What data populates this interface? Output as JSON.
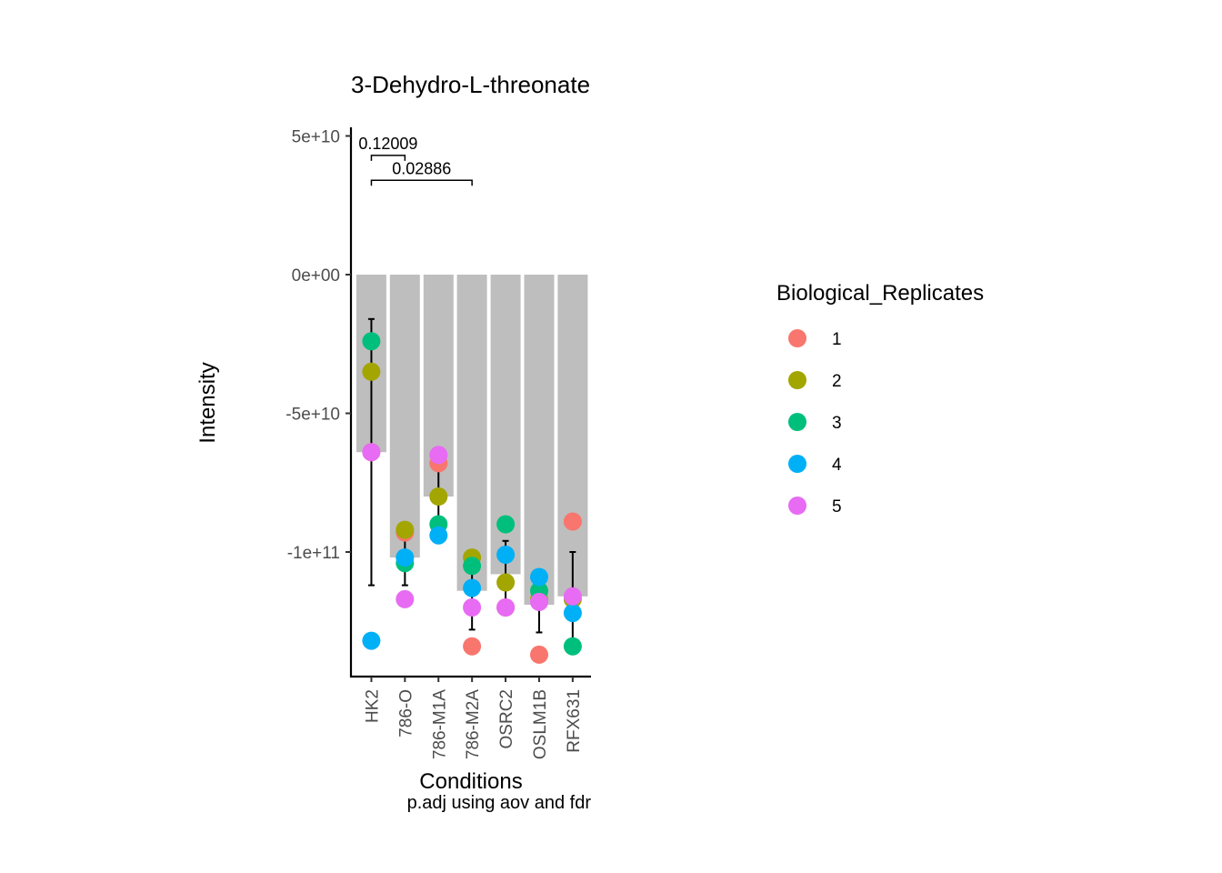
{
  "chart_data": {
    "type": "bar",
    "title": "3-Dehydro-L-threonate",
    "xlabel": "Conditions",
    "ylabel": "Intensity",
    "caption": "p.adj using  aov and fdr",
    "categories": [
      "HK2",
      "786-O",
      "786-M1A",
      "786-M2A",
      "OSRC2",
      "OSLM1B",
      "RFX631"
    ],
    "bar_values": [
      -64000000000.0,
      -102000000000.0,
      -80000000000.0,
      -114000000000.0,
      -108000000000.0,
      -119000000000.0,
      -116000000000.0
    ],
    "error_bars": [
      {
        "low": -112000000000.0,
        "high": -16000000000.0
      },
      {
        "low": -112000000000.0,
        "high": -92000000000.0
      },
      {
        "low": -90000000000.0,
        "high": -70000000000.0
      },
      {
        "low": -128000000000.0,
        "high": -100000000000.0
      },
      {
        "low": -120000000000.0,
        "high": -96000000000.0
      },
      {
        "low": -129000000000.0,
        "high": -109000000000.0
      },
      {
        "low": -133000000000.0,
        "high": -100000000000.0
      }
    ],
    "series": [
      {
        "name": "1",
        "color": "#F8766D",
        "values": [
          -64000000000.0,
          -93000000000.0,
          -68000000000.0,
          -134000000000.0,
          -120000000000.0,
          -137000000000.0,
          -89000000000.0
        ]
      },
      {
        "name": "2",
        "color": "#A3A500",
        "values": [
          -35000000000.0,
          -92000000000.0,
          -80000000000.0,
          -102000000000.0,
          -111000000000.0,
          -117000000000.0,
          -117000000000.0
        ]
      },
      {
        "name": "3",
        "color": "#00BF7D",
        "values": [
          -24000000000.0,
          -104000000000.0,
          -90000000000.0,
          -105000000000.0,
          -90000000000.0,
          -114000000000.0,
          -134000000000.0
        ]
      },
      {
        "name": "4",
        "color": "#00B0F6",
        "values": [
          -132000000000.0,
          -102000000000.0,
          -94000000000.0,
          -113000000000.0,
          -101000000000.0,
          -109000000000.0,
          -122000000000.0
        ]
      },
      {
        "name": "5",
        "color": "#E76BF3",
        "values": [
          -64000000000.0,
          -117000000000.0,
          -65000000000.0,
          -120000000000.0,
          -120000000000.0,
          -118000000000.0,
          -116000000000.0
        ]
      }
    ],
    "comparisons": [
      {
        "from": "HK2",
        "to": "786-O",
        "y": 43000000000.0,
        "label": "0.12009"
      },
      {
        "from": "HK2",
        "to": "786-M2A",
        "y": 34000000000.0,
        "label": "0.02886"
      }
    ],
    "yticks": [
      50000000000.0,
      0,
      -50000000000.0,
      -100000000000.0
    ],
    "ytick_labels": [
      "5e+10",
      "0e+00",
      "-5e+10",
      "-1e+11"
    ],
    "ylim": [
      -145000000000.0,
      50000000000.0
    ],
    "legend": {
      "title": "Biological_Replicates",
      "position": "right"
    },
    "bar_color": "#BEBEBE",
    "grid": false
  }
}
